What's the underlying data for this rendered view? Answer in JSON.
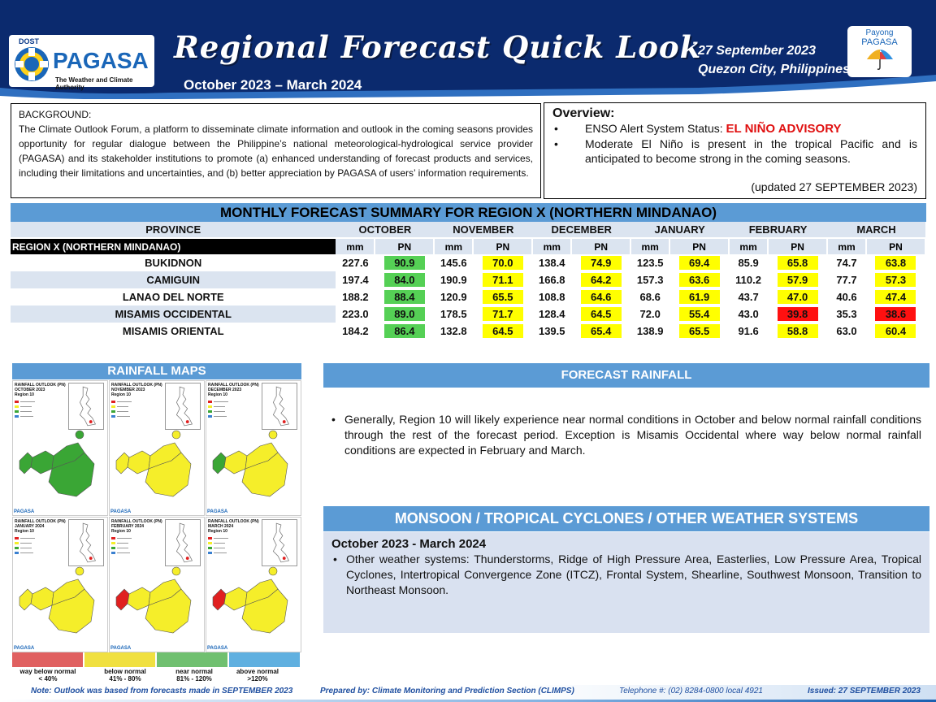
{
  "header": {
    "logo_dost": "DOST",
    "logo_name": "PAGASA",
    "logo_tagline": "The Weather and Climate Authority",
    "title": "Regional Forecast Quick Look",
    "period": "October 2023 – March 2024",
    "date": "27 September 2023",
    "place": "Quezon City, Philippines",
    "payong_line1": "Payong",
    "payong_line2": "PAGASA"
  },
  "background": {
    "title": "Background:",
    "text": "The Climate Outlook Forum, a platform to disseminate climate information and outlook in the coming seasons provides opportunity for regular dialogue between the Philippine’s national meteorological-hydrological service provider (PAGASA) and its stakeholder institutions to promote (a) enhanced understanding of forecast products and services, including their limitations and uncertainties, and (b) better appreciation by PAGASA of users’ information requirements."
  },
  "overview": {
    "title": "Overview:",
    "enso_label": "ENSO Alert System Status: ",
    "enso_status": "EL NIÑO ADVISORY",
    "enso_text": "Moderate El Niño is present in the tropical Pacific and is anticipated to become strong in the coming seasons.",
    "updated": "(updated 27 SEPTEMBER 2023)"
  },
  "table": {
    "title": "MONTHLY FORECAST SUMMARY FOR REGION X (NORTHERN MINDANAO)",
    "province_header": "PROVINCE",
    "region_label": "REGION X (NORTHERN MINDANAO)",
    "unit_mm": "mm",
    "unit_pn": "PN",
    "months": [
      "OCTOBER",
      "NOVEMBER",
      "DECEMBER",
      "JANUARY",
      "FEBRUARY",
      "MARCH"
    ],
    "rows": [
      {
        "province": "BUKIDNON",
        "values": [
          [
            "227.6",
            "90.9",
            "green"
          ],
          [
            "145.6",
            "70.0",
            "yellow"
          ],
          [
            "138.4",
            "74.9",
            "yellow"
          ],
          [
            "123.5",
            "69.4",
            "yellow"
          ],
          [
            "85.9",
            "65.8",
            "yellow"
          ],
          [
            "74.7",
            "63.8",
            "yellow"
          ]
        ]
      },
      {
        "province": "CAMIGUIN",
        "values": [
          [
            "197.4",
            "84.0",
            "green"
          ],
          [
            "190.9",
            "71.1",
            "yellow"
          ],
          [
            "166.8",
            "64.2",
            "yellow"
          ],
          [
            "157.3",
            "63.6",
            "yellow"
          ],
          [
            "110.2",
            "57.9",
            "yellow"
          ],
          [
            "77.7",
            "57.3",
            "yellow"
          ]
        ]
      },
      {
        "province": "LANAO DEL NORTE",
        "values": [
          [
            "188.2",
            "88.4",
            "green"
          ],
          [
            "120.9",
            "65.5",
            "yellow"
          ],
          [
            "108.8",
            "64.6",
            "yellow"
          ],
          [
            "68.6",
            "61.9",
            "yellow"
          ],
          [
            "43.7",
            "47.0",
            "yellow"
          ],
          [
            "40.6",
            "47.4",
            "yellow"
          ]
        ]
      },
      {
        "province": "MISAMIS OCCIDENTAL",
        "values": [
          [
            "223.0",
            "89.0",
            "green"
          ],
          [
            "178.5",
            "71.7",
            "yellow"
          ],
          [
            "128.4",
            "64.5",
            "yellow"
          ],
          [
            "72.0",
            "55.4",
            "yellow"
          ],
          [
            "43.0",
            "39.8",
            "red"
          ],
          [
            "35.3",
            "38.6",
            "red"
          ]
        ]
      },
      {
        "province": "MISAMIS ORIENTAL",
        "values": [
          [
            "184.2",
            "86.4",
            "green"
          ],
          [
            "132.8",
            "64.5",
            "yellow"
          ],
          [
            "139.5",
            "65.4",
            "yellow"
          ],
          [
            "138.9",
            "65.5",
            "yellow"
          ],
          [
            "91.6",
            "58.8",
            "yellow"
          ],
          [
            "63.0",
            "60.4",
            "yellow"
          ]
        ]
      }
    ],
    "colors": {
      "green": "#55d055",
      "yellow": "#ffff00",
      "red": "#ff1010"
    }
  },
  "maps": {
    "title": "RAINFALL MAPS",
    "panels": [
      {
        "title": "RAINFALL OUTLOOK (PN)",
        "month": "OCTOBER 2023",
        "region": "Region 10"
      },
      {
        "title": "RAINFALL OUTLOOK (PN)",
        "month": "NOVEMBER 2023",
        "region": "Region 10"
      },
      {
        "title": "RAINFALL OUTLOOK (PN)",
        "month": "DECEMBER 2023",
        "region": "Region 10"
      },
      {
        "title": "RAINFALL OUTLOOK (PN)",
        "month": "JANUARY 2024",
        "region": "Region 10"
      },
      {
        "title": "RAINFALL OUTLOOK (PN)",
        "month": "FEBRUARY 2024",
        "region": "Region 10"
      },
      {
        "title": "RAINFALL OUTLOOK (PN)",
        "month": "MARCH 2024",
        "region": "Region 10"
      }
    ],
    "legend": [
      {
        "label": "way below normal",
        "range": "< 40%",
        "color": "#e06060"
      },
      {
        "label": "below normal",
        "range": "41% - 80%",
        "color": "#f0e040"
      },
      {
        "label": "near normal",
        "range": "81% - 120%",
        "color": "#70c070"
      },
      {
        "label": "above normal",
        "range": ">120%",
        "color": "#60b0e0"
      }
    ]
  },
  "forecast_rainfall": {
    "title": "FORECAST RAINFALL",
    "text": "Generally, Region 10 will likely experience near normal conditions in October and below normal rainfall conditions through the rest of the forecast period. Exception is Misamis Occidental where way below normal rainfall conditions are expected in February and March."
  },
  "monsoon": {
    "title": "MONSOON / TROPICAL CYCLONES / OTHER WEATHER SYSTEMS",
    "period": "October 2023 - March 2024",
    "text": "Other weather systems: Thunderstorms,  Ridge of High Pressure Area,  Easterlies, Low Pressure Area, Tropical Cyclones, Intertropical Convergence Zone (ITCZ), Frontal System, Shearline, Southwest Monsoon, Transition to Northeast Monsoon."
  },
  "footer": {
    "note": "Note: Outlook was based from forecasts made in SEPTEMBER 2023",
    "prepared": "Prepared by: Climate Monitoring and Prediction Section (CLIMPS)",
    "telephone": "Telephone #: (02) 8284-0800 local 4921",
    "issued": "Issued: 27 SEPTEMBER 2023"
  }
}
